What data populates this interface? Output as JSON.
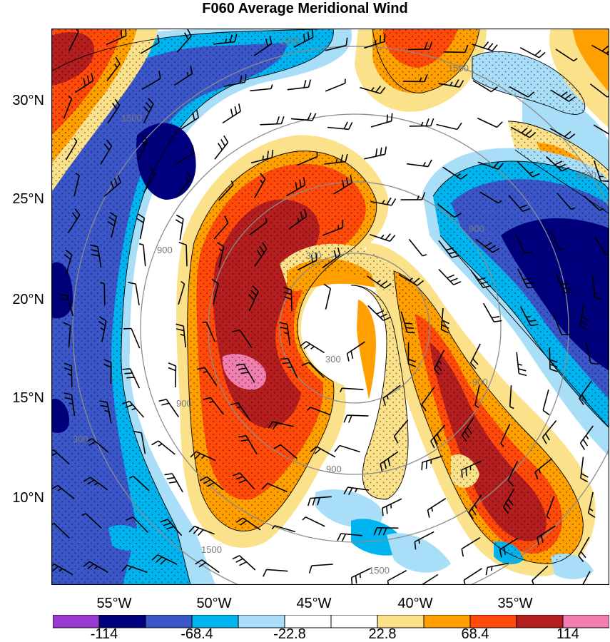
{
  "title": "F060 Average Meridional Wind",
  "lat_labels": [
    "30°N",
    "25°N",
    "20°N",
    "15°N",
    "10°N"
  ],
  "lon_labels": [
    "55°W",
    "50°W",
    "45°W",
    "40°W",
    "35°W"
  ],
  "colorbar": {
    "labels": [
      "-114",
      "-68.4",
      "-22.8",
      "22.8",
      "68.4",
      "114"
    ],
    "colors": [
      "#9a3ad0",
      "#00007f",
      "#3a56c8",
      "#00b4f0",
      "#a8def8",
      "#ffffff",
      "#ffffff",
      "#fbe28a",
      "#ffa000",
      "#ff4a0a",
      "#b41e1e",
      "#f07fb0"
    ]
  },
  "contour_labels": [
    "1500",
    "1500",
    "1500",
    "1500",
    "1500",
    "1500",
    "900",
    "900",
    "900",
    "900",
    "900",
    "300",
    "300",
    "300"
  ],
  "colors": {
    "strong_negative": "#00007f",
    "negative": "#3a56c8",
    "weak_negative": "#a8def8",
    "weak_positive": "#fbe28a",
    "positive": "#ff4a0a",
    "strong_positive": "#b41e1e"
  }
}
